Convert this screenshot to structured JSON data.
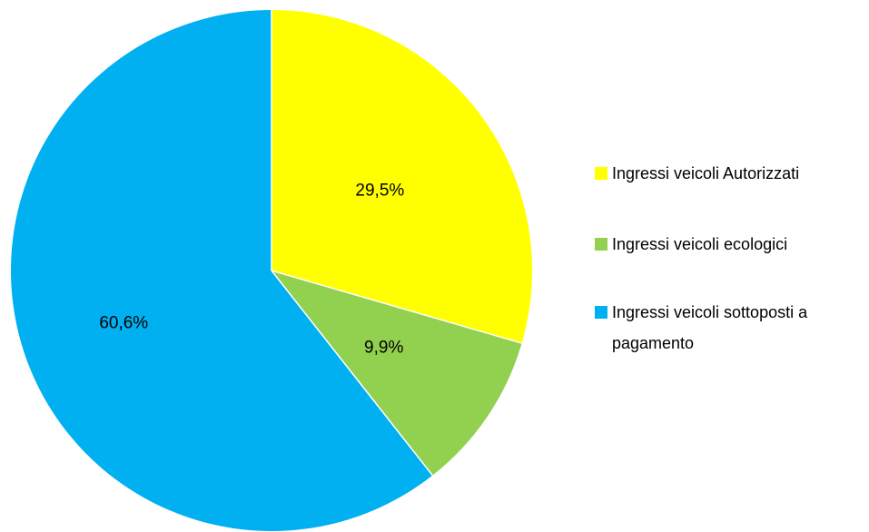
{
  "chart_data": {
    "type": "pie",
    "title": "",
    "categories": [
      "Ingressi veicoli Autorizzati",
      "Ingressi veicoli ecologici",
      "Ingressi veicoli sottoposti a pagamento"
    ],
    "values": [
      29.5,
      9.9,
      60.6
    ],
    "data_labels": [
      "29,5%",
      "9,9%",
      "60,6%"
    ],
    "legend": {
      "placement": "right",
      "entries": [
        {
          "lines": [
            "Ingressi veicoli Autorizzati"
          ]
        },
        {
          "lines": [
            "Ingressi veicoli ecologici"
          ]
        },
        {
          "lines": [
            "Ingressi veicoli sottoposti a",
            "pagamento"
          ]
        }
      ]
    },
    "colors": [
      "#ffff00",
      "#92d050",
      "#00b0f0"
    ],
    "start_angle": "12 o'clock",
    "direction": "clockwise"
  }
}
